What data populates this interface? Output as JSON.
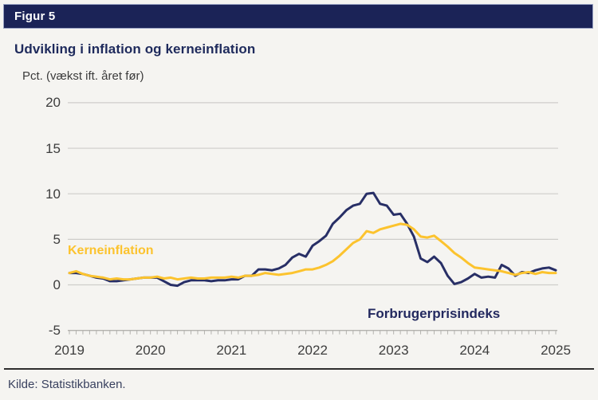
{
  "header": {
    "label": "Figur 5"
  },
  "footer": {
    "source": "Kilde: Statistikbanken."
  },
  "colors": {
    "page_background": "#f5f4f1",
    "header_bar": "#1b2357",
    "title_navy": "#1e2a5c",
    "cpi_line": "#282f66",
    "core_line": "#fcc32e",
    "gridline": "#cecdca",
    "axis": "#b3b2ae",
    "tick_text": "#3d3d3d"
  },
  "chart_data": {
    "type": "line",
    "title": "Udvikling i inflation og kerneinflation",
    "unit_label": "Pct. (vækst ift. året før)",
    "frequency": "monthly",
    "x_start": "2019-01",
    "x_end": "2025-01",
    "x_tick_labels": [
      "2019",
      "2020",
      "2021",
      "2022",
      "2023",
      "2024",
      "2025"
    ],
    "ylim": [
      -5,
      20
    ],
    "yticks": [
      -5,
      0,
      5,
      10,
      15,
      20
    ],
    "grid": "horizontal",
    "legend_position": "inline-labels",
    "series": [
      {
        "name": "Forbrugerprisindeks",
        "color": "#282f66",
        "values": [
          1.3,
          1.3,
          1.2,
          1.0,
          0.8,
          0.7,
          0.4,
          0.4,
          0.5,
          0.6,
          0.7,
          0.8,
          0.8,
          0.8,
          0.4,
          0.0,
          -0.1,
          0.3,
          0.5,
          0.5,
          0.5,
          0.4,
          0.5,
          0.5,
          0.6,
          0.6,
          1.0,
          1.0,
          1.7,
          1.7,
          1.6,
          1.8,
          2.2,
          3.0,
          3.4,
          3.1,
          4.3,
          4.8,
          5.4,
          6.7,
          7.4,
          8.2,
          8.7,
          8.9,
          10.0,
          10.1,
          8.9,
          8.7,
          7.7,
          7.8,
          6.7,
          5.3,
          2.9,
          2.5,
          3.1,
          2.4,
          1.0,
          0.1,
          0.3,
          0.7,
          1.2,
          0.8,
          0.9,
          0.8,
          2.2,
          1.8,
          1.0,
          1.4,
          1.3,
          1.6,
          1.8,
          1.9,
          1.6
        ]
      },
      {
        "name": "Kerneinflation",
        "color": "#fcc32e",
        "values": [
          1.3,
          1.5,
          1.2,
          1.0,
          0.9,
          0.8,
          0.6,
          0.7,
          0.6,
          0.6,
          0.7,
          0.8,
          0.8,
          0.9,
          0.7,
          0.8,
          0.6,
          0.7,
          0.8,
          0.7,
          0.7,
          0.8,
          0.8,
          0.8,
          0.9,
          0.8,
          1.0,
          1.0,
          1.1,
          1.3,
          1.2,
          1.1,
          1.2,
          1.3,
          1.5,
          1.7,
          1.7,
          1.9,
          2.2,
          2.6,
          3.2,
          3.9,
          4.6,
          5.0,
          5.9,
          5.7,
          6.1,
          6.3,
          6.5,
          6.7,
          6.6,
          6.1,
          5.3,
          5.2,
          5.4,
          4.8,
          4.2,
          3.5,
          3.0,
          2.4,
          1.9,
          1.8,
          1.7,
          1.6,
          1.5,
          1.3,
          1.1,
          1.3,
          1.4,
          1.2,
          1.4,
          1.3,
          1.3
        ]
      }
    ]
  }
}
